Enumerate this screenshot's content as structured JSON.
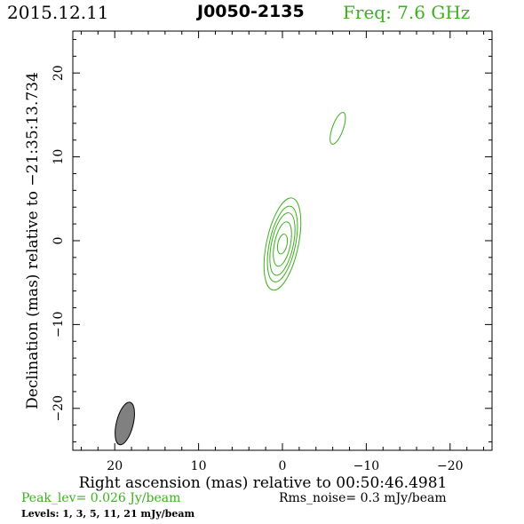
{
  "header": {
    "date": "2015.12.11",
    "source": "J0050-2135",
    "freq": "Freq: 7.6 GHz"
  },
  "footer": {
    "peak": "Peak_lev=  0.026 Jy/beam",
    "rms": "Rms_noise=  0.3 mJy/beam",
    "levels": "Levels:   1,   3,   5,  11,  21 mJy/beam"
  },
  "colors": {
    "contour": "#3cb01e",
    "beam_fill": "#808080",
    "text": "#000000"
  },
  "chart_data": {
    "type": "contour",
    "xlabel": "Right ascension (mas) relative to 00:50:46.4981",
    "ylabel": "Declination (mas) relative to −21:35:13.734",
    "xlim": [
      25,
      -25
    ],
    "ylim": [
      -25,
      25
    ],
    "x_ticks": [
      20,
      10,
      0,
      -10,
      -20
    ],
    "y_ticks": [
      -20,
      -10,
      0,
      10,
      20
    ],
    "x_tick_labels": [
      "20",
      "10",
      "0",
      "−10",
      "−20"
    ],
    "y_tick_labels": [
      "−20",
      "−10",
      "0",
      "10",
      "20"
    ],
    "levels_mJy": [
      1,
      3,
      5,
      11,
      21
    ],
    "peak_Jy_per_beam": 0.026,
    "rms_mJy_per_beam": 0.3,
    "components": [
      {
        "name": "core",
        "center": [
          0.0,
          -0.4
        ],
        "pa_deg": 12,
        "contours": [
          {
            "level_mJy": 1,
            "semi_major": 5.6,
            "semi_minor": 1.9
          },
          {
            "level_mJy": 3,
            "semi_major": 4.6,
            "semi_minor": 1.55
          },
          {
            "level_mJy": 5,
            "semi_major": 3.8,
            "semi_minor": 1.3
          },
          {
            "level_mJy": 11,
            "semi_major": 2.7,
            "semi_minor": 0.95
          },
          {
            "level_mJy": 21,
            "semi_major": 1.2,
            "semi_minor": 0.55
          }
        ]
      },
      {
        "name": "jet",
        "center": [
          -6.6,
          13.4
        ],
        "pa_deg": 20,
        "contours": [
          {
            "level_mJy": 1,
            "semi_major": 2.0,
            "semi_minor": 0.65
          }
        ]
      }
    ],
    "beam": {
      "center": [
        18.8,
        -21.8
      ],
      "semi_major": 2.6,
      "semi_minor": 1.0,
      "pa_deg": 14
    }
  }
}
